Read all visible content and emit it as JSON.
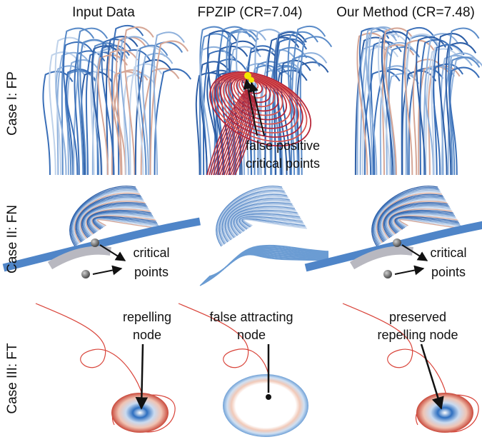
{
  "columns": [
    "Input Data",
    "FPZIP (CR=7.04)",
    "Our Method (CR=7.48)"
  ],
  "rows": [
    "Case I: FP",
    "Case II: FN",
    "Case III: FT"
  ],
  "annotations": {
    "case1_fpzip": [
      "false positive",
      "critical points"
    ],
    "case2_input": [
      "critical",
      "points"
    ],
    "case2_ours": [
      "critical",
      "points"
    ],
    "case3_input": [
      "repelling",
      "node"
    ],
    "case3_fpzip": [
      "false attracting",
      "node"
    ],
    "case3_ours": [
      "preserved",
      "repelling node"
    ]
  }
}
